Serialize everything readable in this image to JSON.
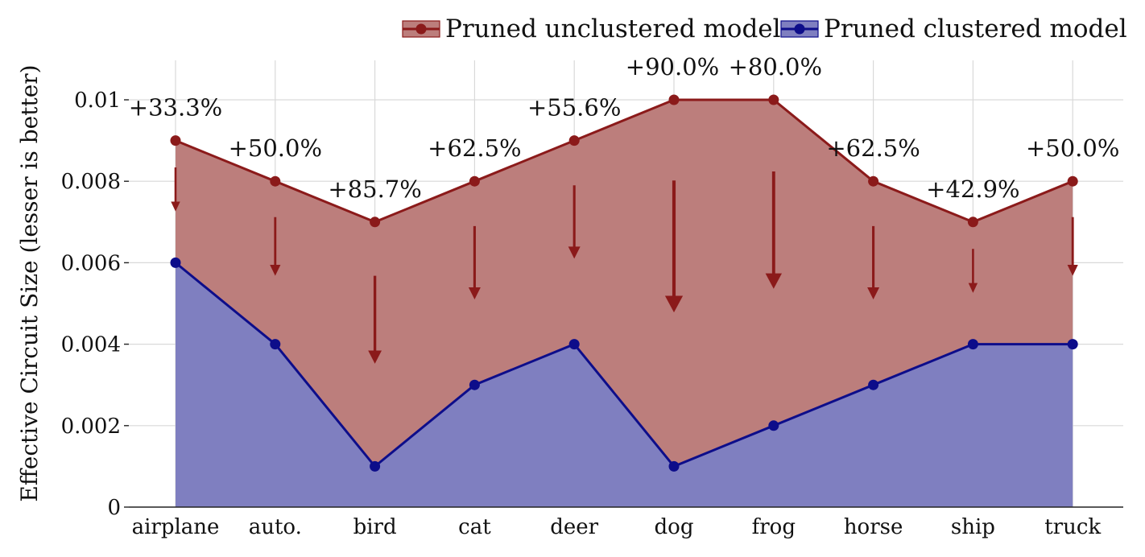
{
  "chart_data": {
    "type": "area",
    "categories": [
      "airplane",
      "auto.",
      "bird",
      "cat",
      "deer",
      "dog",
      "frog",
      "horse",
      "ship",
      "truck"
    ],
    "series": [
      {
        "name": "Pruned unclustered model",
        "values": [
          0.009,
          0.008,
          0.007,
          0.008,
          0.009,
          0.01,
          0.01,
          0.008,
          0.007,
          0.008
        ],
        "line_color": "#8b1a1a",
        "fill_color": "#bc7e7c"
      },
      {
        "name": "Pruned clustered model",
        "values": [
          0.006,
          0.004,
          0.001,
          0.003,
          0.004,
          0.001,
          0.002,
          0.003,
          0.004,
          0.004
        ],
        "line_color": "#0d0d8a",
        "fill_color": "#7f7fc0"
      }
    ],
    "annotations": [
      "+33.3%",
      "+50.0%",
      "+85.7%",
      "+62.5%",
      "+55.6%",
      "+90.0%",
      "+80.0%",
      "+62.5%",
      "+42.9%",
      "+50.0%"
    ],
    "ylabel": "Effective Circuit Size (lesser is better)",
    "xlabel": "",
    "title": "",
    "ylim": [
      0,
      0.0105
    ],
    "yticks": [
      0,
      0.002,
      0.004,
      0.006,
      0.008,
      0.01
    ],
    "ytick_labels": [
      "0",
      "0.002",
      "0.004",
      "0.006",
      "0.008",
      "0.01"
    ],
    "grid": true,
    "legend_position": "top-right",
    "arrow_color": "#8b1a1a"
  }
}
